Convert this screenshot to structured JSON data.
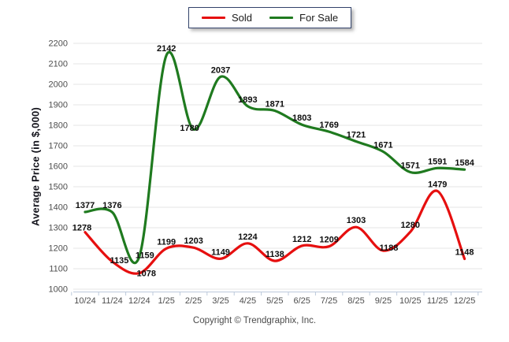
{
  "legend": {
    "items": [
      {
        "label": "Sold",
        "color": "#e60f0f"
      },
      {
        "label": "For Sale",
        "color": "#1f7a1f"
      }
    ]
  },
  "chart_data": {
    "type": "line",
    "x": [
      "10/24",
      "11/24",
      "12/24",
      "1/25",
      "2/25",
      "3/25",
      "4/25",
      "5/25",
      "6/25",
      "7/25",
      "8/25",
      "9/25",
      "10/25",
      "11/25",
      "12/25"
    ],
    "series": [
      {
        "name": "Sold",
        "color": "#e60f0f",
        "values": [
          1278,
          1135,
          1078,
          1199,
          1203,
          1149,
          1224,
          1138,
          1212,
          1209,
          1303,
          1188,
          1280,
          1479,
          1148
        ]
      },
      {
        "name": "For Sale",
        "color": "#1f7a1f",
        "values": [
          1377,
          1376,
          1159,
          2142,
          1780,
          2037,
          1893,
          1871,
          1803,
          1769,
          1721,
          1671,
          1571,
          1591,
          1584
        ]
      }
    ],
    "title": "",
    "xlabel": "",
    "ylabel": "Average Price (in $,000)",
    "ylim": [
      1000,
      2200
    ],
    "ytick_step": 100,
    "grid": true,
    "smooth": true,
    "data_labels": true,
    "legend_position": "top-center"
  },
  "colors": {
    "gridline": "#e4e4e4",
    "axis_line": "#bcc9db",
    "tick_label": "#4d4d4d",
    "data_label": "#0d0d0d"
  },
  "footer": {
    "copyright": "Copyright © Trendgraphix, Inc."
  }
}
